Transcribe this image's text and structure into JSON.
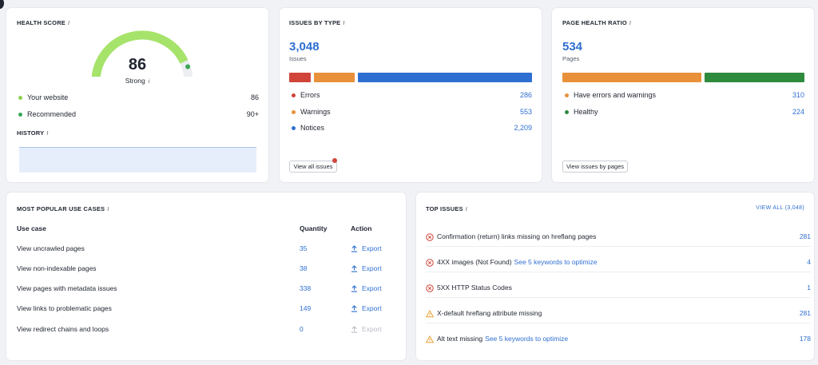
{
  "health_score": {
    "title": "HEALTH SCORE",
    "info": "i",
    "score": "86",
    "rating": "Strong",
    "gauge_fraction": 0.86,
    "legend": [
      {
        "label": "Your website",
        "value": "86",
        "color": "#8fd14f"
      },
      {
        "label": "Recommended",
        "value": "90+",
        "color": "#3aa757"
      }
    ],
    "history_title": "HISTORY"
  },
  "issues_by_type": {
    "title": "ISSUES BY TYPE",
    "total": "3,048",
    "total_label": "Issues",
    "rows": [
      {
        "label": "Errors",
        "value": "286",
        "color": "#d0443a"
      },
      {
        "label": "Warnings",
        "value": "553",
        "color": "#e8913a"
      },
      {
        "label": "Notices",
        "value": "2,209",
        "color": "#2f6fd1"
      }
    ],
    "button": "View all issues"
  },
  "page_health": {
    "title": "PAGE HEALTH RATIO",
    "total": "534",
    "total_label": "Pages",
    "rows": [
      {
        "label": "Have errors and warnings",
        "value": "310",
        "color": "#e8913a"
      },
      {
        "label": "Healthy",
        "value": "224",
        "color": "#2e8b3e"
      }
    ],
    "button": "View issues by pages"
  },
  "use_cases": {
    "title": "MOST POPULAR USE CASES",
    "headers": {
      "use_case": "Use case",
      "quantity": "Quantity",
      "action": "Action"
    },
    "rows": [
      {
        "label": "View uncrawled pages",
        "quantity": "35",
        "action": "Export",
        "enabled": true
      },
      {
        "label": "View non-indexable pages",
        "quantity": "38",
        "action": "Export",
        "enabled": true
      },
      {
        "label": "View pages with metadata issues",
        "quantity": "338",
        "action": "Export",
        "enabled": true
      },
      {
        "label": "View links to problematic pages",
        "quantity": "149",
        "action": "Export",
        "enabled": true
      },
      {
        "label": "View redirect chains and loops",
        "quantity": "0",
        "action": "Export",
        "enabled": false
      }
    ]
  },
  "top_issues": {
    "title": "TOP ISSUES",
    "view_all": "VIEW ALL (3,048)",
    "rows": [
      {
        "type": "error",
        "text": "Confirmation (return) links missing on hreflang pages",
        "link": "",
        "value": "281"
      },
      {
        "type": "error",
        "text": "4XX images (Not Found)",
        "link": "See 5 keywords to optimize",
        "value": "4"
      },
      {
        "type": "error",
        "text": "5XX HTTP Status Codes",
        "link": "",
        "value": "1"
      },
      {
        "type": "warning",
        "text": "X-default hreflang attribute missing",
        "link": "",
        "value": "281"
      },
      {
        "type": "warning",
        "text": "Alt text missing",
        "link": "See 5 keywords to optimize",
        "value": "178"
      }
    ]
  }
}
